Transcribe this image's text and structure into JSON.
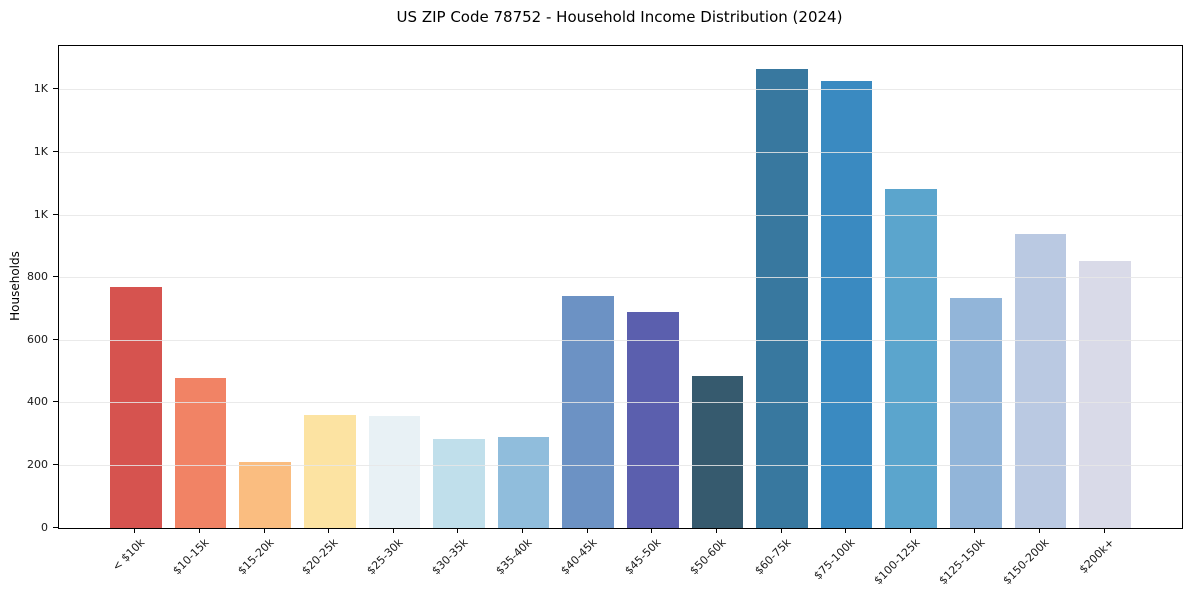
{
  "chart_data": {
    "type": "bar",
    "title": "US ZIP Code 78752 - Household Income Distribution (2024)",
    "xlabel": "",
    "ylabel": "Households",
    "categories": [
      "< $10k",
      "$10-15k",
      "$15-20k",
      "$20-25k",
      "$25-30k",
      "$30-35k",
      "$35-40k",
      "$40-45k",
      "$45-50k",
      "$50-60k",
      "$60-75k",
      "$75-100k",
      "$100-125k",
      "$125-150k",
      "$150-200k",
      "$200k+"
    ],
    "values": [
      770,
      480,
      210,
      362,
      359,
      284,
      290,
      741,
      690,
      486,
      1467,
      1429,
      1083,
      735,
      938,
      854
    ],
    "bar_colors": [
      "#d6534f",
      "#f18365",
      "#fabd80",
      "#fce3a2",
      "#e8f1f5",
      "#c0dfeb",
      "#90bddc",
      "#6c92c4",
      "#5b5fae",
      "#365a6e",
      "#38789f",
      "#3a8ac1",
      "#5ba5cd",
      "#92b5d9",
      "#bac9e2",
      "#d9dae8"
    ],
    "ytick_values": [
      0,
      200,
      400,
      600,
      800,
      1000,
      1200,
      1400
    ],
    "ytick_labels": [
      "0",
      "200",
      "400",
      "600",
      "800",
      "1K",
      "1K",
      "1K"
    ],
    "ylim": [
      0,
      1540
    ],
    "grid": "horizontal",
    "legend": "none",
    "background_color": "#ffffff",
    "spine_color": "#000000",
    "grid_color": "#e6e6e6"
  }
}
